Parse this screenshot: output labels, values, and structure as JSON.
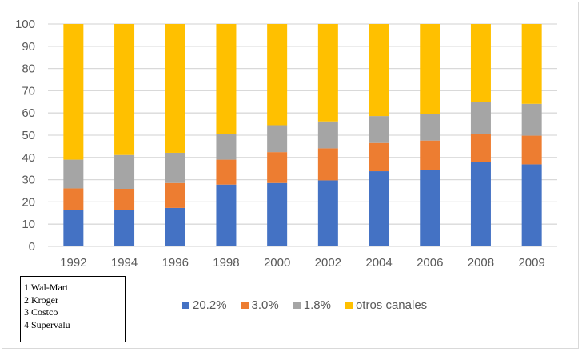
{
  "chart_data": {
    "type": "bar",
    "stacked": true,
    "categories": [
      "1992",
      "1994",
      "1996",
      "1998",
      "2000",
      "2002",
      "2004",
      "2006",
      "2008",
      "2009"
    ],
    "series": [
      {
        "name": "20.2%",
        "color": "#4472c4",
        "values": [
          16.5,
          16.5,
          17.3,
          27.8,
          28.5,
          29.7,
          33.8,
          34.4,
          37.9,
          36.9
        ]
      },
      {
        "name": "3.0%",
        "color": "#ed7d31",
        "values": [
          9.6,
          9.4,
          11.2,
          11.2,
          13.9,
          14.4,
          12.7,
          13.2,
          12.8,
          12.9
        ]
      },
      {
        "name": "1.8%",
        "color": "#a5a5a5",
        "values": [
          12.9,
          15.2,
          13.6,
          11.5,
          12.1,
          12.1,
          12.1,
          12.1,
          14.4,
          14.3
        ]
      },
      {
        "name": "otros canales",
        "color": "#ffc000",
        "values": [
          61.0,
          58.9,
          57.9,
          49.5,
          45.5,
          43.8,
          41.4,
          40.3,
          34.9,
          35.9
        ]
      }
    ],
    "ylim": [
      0,
      100
    ],
    "yticks": [
      "0",
      "10",
      "20",
      "30",
      "40",
      "50",
      "60",
      "70",
      "80",
      "90",
      "100"
    ],
    "grid": true,
    "legend_position": "bottom"
  },
  "note": {
    "lines": [
      "1 Wal-Mart",
      "2 Kroger",
      "3 Costco",
      "4 Supervalu"
    ]
  }
}
